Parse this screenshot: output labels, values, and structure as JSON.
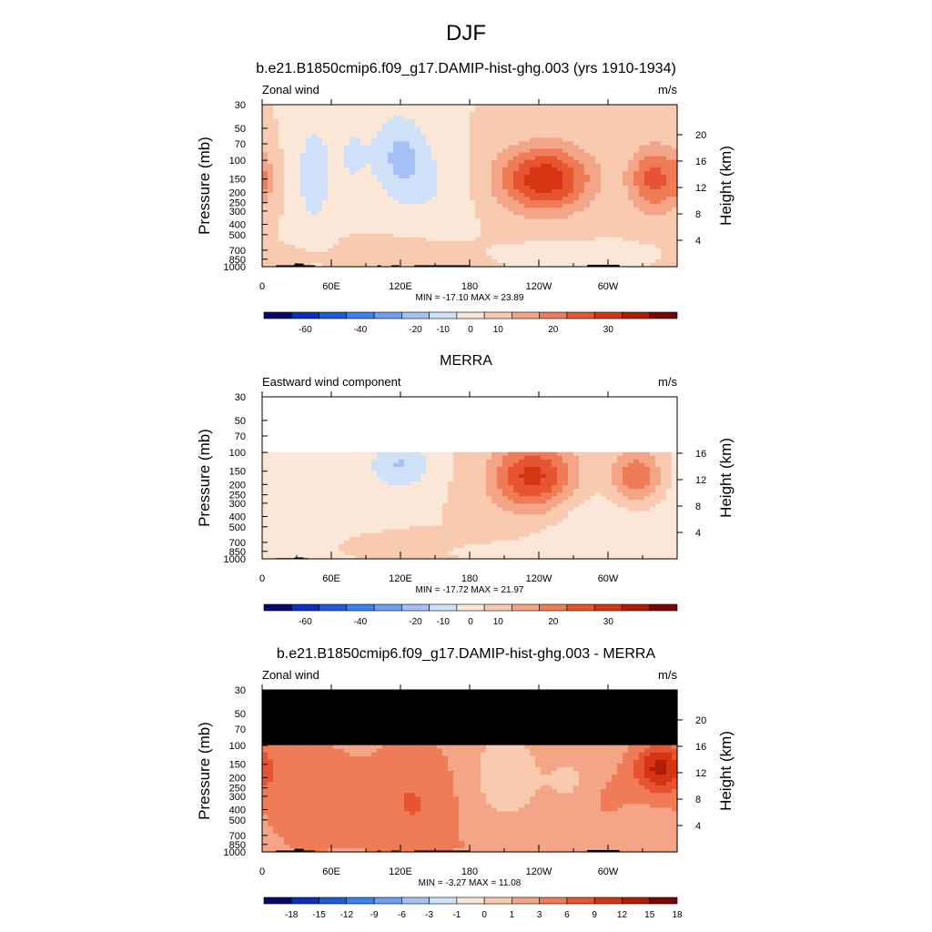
{
  "figure": {
    "title": "DJF"
  },
  "chart_data": [
    {
      "type": "heatmap",
      "title": "b.e21.B1850cmip6.f09_g17.DAMIP-hist-ghg.003 (yrs 1910-1934)",
      "variable_label": "Zonal wind",
      "units_label": "m/s",
      "ylabel": "Pressure (mb)",
      "ylabel_right": "Height (km)",
      "x_ticks": [
        "0",
        "60E",
        "120E",
        "180",
        "120W",
        "60W"
      ],
      "y_ticks": [
        "30",
        "50",
        "70",
        "100",
        "150",
        "200",
        "250",
        "300",
        "400",
        "500",
        "700",
        "850",
        "1000"
      ],
      "height_ticks": [
        "20",
        "16",
        "12",
        "8",
        "4"
      ],
      "stats": "MIN = -17.10  MAX =  23.89",
      "colorbar_labels": [
        "-60",
        "-40",
        "-20",
        "-10",
        "0",
        "10",
        "20",
        "30"
      ],
      "min": -17.1,
      "max": 23.89,
      "blank_above_mb": null,
      "masked_above_mb": null,
      "features": [
        {
          "x": 45,
          "y": 135,
          "sx": 12,
          "sy": 120,
          "v": -8
        },
        {
          "x": 78,
          "y": 90,
          "sx": 10,
          "sy": 60,
          "v": -5
        },
        {
          "x": 120,
          "y": 90,
          "sx": 18,
          "sy": 60,
          "v": -11
        },
        {
          "x": 150,
          "y": 200,
          "sx": 22,
          "sy": 120,
          "v": -4
        },
        {
          "x": 245,
          "y": 150,
          "sx": 28,
          "sy": 75,
          "v": 24
        },
        {
          "x": 340,
          "y": 150,
          "sx": 15,
          "sy": 75,
          "v": 17
        },
        {
          "x": 0,
          "y": 150,
          "sx": 6,
          "sy": 60,
          "v": 6
        },
        {
          "x": 120,
          "y": 720,
          "sx": 35,
          "sy": 150,
          "v": 3
        },
        {
          "x": 30,
          "y": 800,
          "sx": 20,
          "sy": 100,
          "v": 2
        },
        {
          "x": 270,
          "y": 720,
          "sx": 35,
          "sy": 90,
          "v": -3
        }
      ],
      "terrain": [
        {
          "lon1": 12,
          "lon2": 46,
          "top_mb": 970
        },
        {
          "lon1": 28,
          "lon2": 36,
          "top_mb": 935
        },
        {
          "lon1": 100,
          "lon2": 103,
          "top_mb": 970
        },
        {
          "lon1": 112,
          "lon2": 119,
          "top_mb": 970
        },
        {
          "lon1": 132,
          "lon2": 180,
          "top_mb": 970
        },
        {
          "lon1": 282,
          "lon2": 310,
          "top_mb": 960
        }
      ]
    },
    {
      "type": "heatmap",
      "title": "MERRA",
      "variable_label": "Eastward wind component",
      "units_label": "m/s",
      "ylabel": "Pressure (mb)",
      "ylabel_right": "Height (km)",
      "x_ticks": [
        "0",
        "60E",
        "120E",
        "180",
        "120W",
        "60W"
      ],
      "y_ticks": [
        "30",
        "50",
        "70",
        "100",
        "150",
        "200",
        "250",
        "300",
        "400",
        "500",
        "700",
        "850",
        "1000"
      ],
      "height_ticks": [
        "16",
        "12",
        "8",
        "4"
      ],
      "stats": "MIN = -17.72  MAX =  21.97",
      "colorbar_labels": [
        "-60",
        "-40",
        "-20",
        "-10",
        "0",
        "10",
        "20",
        "30"
      ],
      "min": -17.72,
      "max": 21.97,
      "blank_above_mb": 100,
      "masked_above_mb": null,
      "features": [
        {
          "x": 40,
          "y": 250,
          "sx": 35,
          "sy": 250,
          "v": -4
        },
        {
          "x": 120,
          "y": 130,
          "sx": 18,
          "sy": 50,
          "v": -10
        },
        {
          "x": 235,
          "y": 170,
          "sx": 25,
          "sy": 90,
          "v": 22
        },
        {
          "x": 325,
          "y": 170,
          "sx": 15,
          "sy": 70,
          "v": 15
        },
        {
          "x": 100,
          "y": 750,
          "sx": 30,
          "sy": 130,
          "v": 3
        },
        {
          "x": 290,
          "y": 450,
          "sx": 40,
          "sy": 250,
          "v": -4
        },
        {
          "x": 220,
          "y": 850,
          "sx": 25,
          "sy": 50,
          "v": -4
        }
      ],
      "terrain": [
        {
          "lon1": 12,
          "lon2": 40,
          "top_mb": 985
        },
        {
          "lon1": 28,
          "lon2": 36,
          "top_mb": 970
        }
      ]
    },
    {
      "type": "heatmap",
      "title": "b.e21.B1850cmip6.f09_g17.DAMIP-hist-ghg.003 - MERRA",
      "variable_label": "Zonal wind",
      "units_label": "m/s",
      "ylabel": "Pressure (mb)",
      "ylabel_right": "Height (km)",
      "x_ticks": [
        "0",
        "60E",
        "120E",
        "180",
        "120W",
        "60W"
      ],
      "y_ticks": [
        "30",
        "50",
        "70",
        "100",
        "150",
        "200",
        "250",
        "300",
        "400",
        "500",
        "700",
        "850",
        "1000"
      ],
      "height_ticks": [
        "20",
        "16",
        "12",
        "8",
        "4"
      ],
      "stats": "MIN = -3.27  MAX = 11.08",
      "colorbar_labels": [
        "-18",
        "-15",
        "-12",
        "-9",
        "-6",
        "-3",
        "-1",
        "0",
        "1",
        "3",
        "6",
        "9",
        "12",
        "15",
        "18"
      ],
      "min": -3.27,
      "max": 11.08,
      "blank_above_mb": null,
      "masked_above_mb": 100,
      "features": [
        {
          "x": 180,
          "y": 400,
          "sx": 200,
          "sy": 2000,
          "v": 2.2
        },
        {
          "x": 345,
          "y": 160,
          "sx": 15,
          "sy": 60,
          "v": 11
        },
        {
          "x": 40,
          "y": 300,
          "sx": 30,
          "sy": 250,
          "v": 3.5
        },
        {
          "x": 130,
          "y": 350,
          "sx": 25,
          "sy": 300,
          "v": 4
        },
        {
          "x": 210,
          "y": 200,
          "sx": 25,
          "sy": 150,
          "v": -2
        },
        {
          "x": 270,
          "y": 220,
          "sx": 15,
          "sy": 80,
          "v": -1.5
        },
        {
          "x": 300,
          "y": 300,
          "sx": 20,
          "sy": 150,
          "v": 1.5
        },
        {
          "x": 170,
          "y": 850,
          "sx": 80,
          "sy": 80,
          "v": 0.5
        }
      ],
      "terrain": [
        {
          "lon1": 12,
          "lon2": 46,
          "top_mb": 970
        },
        {
          "lon1": 28,
          "lon2": 36,
          "top_mb": 935
        },
        {
          "lon1": 100,
          "lon2": 103,
          "top_mb": 970
        },
        {
          "lon1": 112,
          "lon2": 119,
          "top_mb": 970
        },
        {
          "lon1": 132,
          "lon2": 180,
          "top_mb": 970
        },
        {
          "lon1": 282,
          "lon2": 310,
          "top_mb": 960
        }
      ]
    }
  ],
  "colors": {
    "diverging": [
      "#08086b",
      "#0b2fbf",
      "#1f5ad9",
      "#3f7ff0",
      "#6f9ff3",
      "#a4c0f4",
      "#cfe1f8",
      "#fbe7d7",
      "#f8cbb0",
      "#f5a587",
      "#ef7b57",
      "#e65431",
      "#d63514",
      "#b01d05",
      "#7a0303"
    ],
    "bg_blank": "#ffffff",
    "mask": "#000000",
    "terrain": "#000000"
  }
}
